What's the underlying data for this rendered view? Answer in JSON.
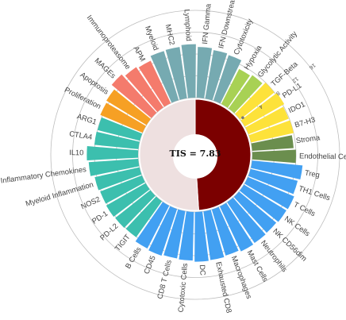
{
  "chart_data": {
    "type": "polar-bar",
    "center_label": "TIS = 7.83",
    "radial_ticks": [
      "4",
      "8",
      "12",
      "16"
    ],
    "radial_range": [
      0,
      16
    ],
    "center_pie": {
      "type": "pie",
      "slices": [
        {
          "fraction": 0.49,
          "color": "#7b0000"
        },
        {
          "fraction": 0.51,
          "color": "#eee0e0"
        }
      ]
    },
    "categories": [
      "MHC2",
      "Lymphoid",
      "IFN Gamma",
      "IFN Downstream",
      "Cytotoxicity",
      "Hypoxia",
      "Glycolytic Activity",
      "TGF-Beta",
      "PD-L1",
      "IDO1",
      "B7-H3",
      "Stroma",
      "Endothelial Cells",
      "Treg",
      "TH1 Cells",
      "T Cells",
      "NK Cells",
      "NK CD56dim",
      "Neutrophils",
      "Mast Cells",
      "Macrophages",
      "Exhausted CD8",
      "DC",
      "Cytotoxic Cells",
      "CD8 T Cells",
      "CD45",
      "B Cells",
      "TIGIT",
      "PD-L2",
      "PD-1",
      "NOS2",
      "Myeloid Inflammation",
      "Inflammatory Chemokines",
      "IL10",
      "CTLA4",
      "ARG1",
      "Proliferation",
      "Apoptosis",
      "MAGEs",
      "Immunoproteasome",
      "APM",
      "Myeloid"
    ],
    "values": [
      9.5,
      9.8,
      9.3,
      9.0,
      8.8,
      7.2,
      7.5,
      8.0,
      8.3,
      7.9,
      8.0,
      7.6,
      8.0,
      9.3,
      8.9,
      9.2,
      9.1,
      8.9,
      9.0,
      9.1,
      8.8,
      9.0,
      9.1,
      8.9,
      8.8,
      9.0,
      8.8,
      8.1,
      8.2,
      8.3,
      8.2,
      8.4,
      9.1,
      9.4,
      8.1,
      8.0,
      8.4,
      8.6,
      9.5,
      8.9,
      8.6,
      9.4
    ],
    "colors": [
      "#76aab1",
      "#76aab1",
      "#76aab1",
      "#76aab1",
      "#76aab1",
      "#a8d154",
      "#a8d154",
      "#fde23a",
      "#fde23a",
      "#fde23a",
      "#fde23a",
      "#6b8e4e",
      "#6b8e4e",
      "#42a0f2",
      "#42a0f2",
      "#42a0f2",
      "#42a0f2",
      "#42a0f2",
      "#42a0f2",
      "#42a0f2",
      "#42a0f2",
      "#42a0f2",
      "#42a0f2",
      "#42a0f2",
      "#42a0f2",
      "#42a0f2",
      "#42a0f2",
      "#3cbfae",
      "#3cbfae",
      "#3cbfae",
      "#3cbfae",
      "#3cbfae",
      "#3cbfae",
      "#3cbfae",
      "#3cbfae",
      "#3cbfae",
      "#f6a024",
      "#f6a024",
      "#f47b6c",
      "#f47b6c",
      "#f47b6c",
      "#76aab1"
    ],
    "grid": true,
    "legend": "none"
  }
}
